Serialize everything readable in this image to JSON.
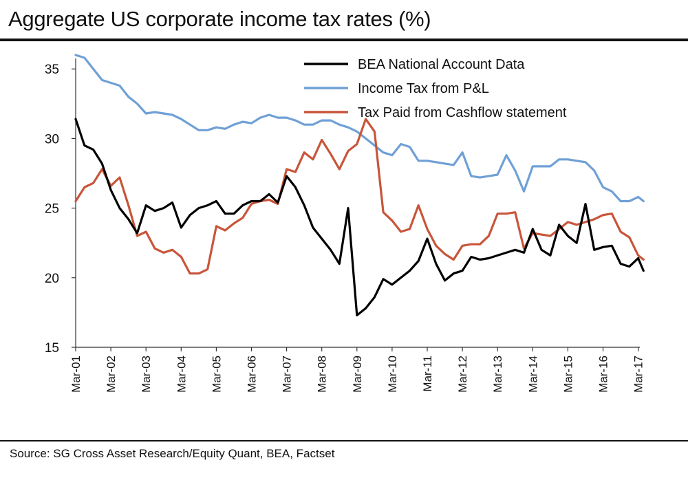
{
  "title": "Aggregate US corporate income tax rates (%)",
  "source": "Source: SG Cross Asset Research/Equity Quant, BEA, Factset",
  "chart_data": {
    "type": "line",
    "ylim": [
      15,
      36
    ],
    "yticks": [
      15,
      20,
      25,
      30,
      35
    ],
    "x_ticks": [
      "Mar-01",
      "Mar-02",
      "Mar-03",
      "Mar-04",
      "Mar-05",
      "Mar-06",
      "Mar-07",
      "Mar-08",
      "Mar-09",
      "Mar-10",
      "Mar-11",
      "Mar-12",
      "Mar-13",
      "Mar-14",
      "Mar-15",
      "Mar-16",
      "Mar-17"
    ],
    "legend_position": "top-right",
    "grid": false,
    "series": [
      {
        "name": "BEA National Account Data",
        "color": "#000000",
        "x": [
          2001.0,
          2001.25,
          2001.5,
          2001.75,
          2002.0,
          2002.25,
          2002.5,
          2002.75,
          2003.0,
          2003.25,
          2003.5,
          2003.75,
          2004.0,
          2004.25,
          2004.5,
          2004.75,
          2005.0,
          2005.25,
          2005.5,
          2005.75,
          2006.0,
          2006.25,
          2006.5,
          2006.75,
          2007.0,
          2007.25,
          2007.5,
          2007.75,
          2008.0,
          2008.25,
          2008.5,
          2008.75,
          2009.0,
          2009.25,
          2009.5,
          2009.75,
          2010.0,
          2010.25,
          2010.5,
          2010.75,
          2011.0,
          2011.25,
          2011.5,
          2011.75,
          2012.0,
          2012.25,
          2012.5,
          2012.75,
          2013.0,
          2013.25,
          2013.5,
          2013.75,
          2014.0,
          2014.25,
          2014.5,
          2014.75,
          2015.0,
          2015.25,
          2015.5,
          2015.75,
          2016.0,
          2016.25,
          2016.5,
          2016.75,
          2017.0,
          2017.15
        ],
        "values": [
          31.4,
          29.5,
          29.2,
          28.2,
          26.3,
          25.0,
          24.2,
          23.2,
          25.2,
          24.8,
          25.0,
          25.4,
          23.6,
          24.5,
          25.0,
          25.2,
          25.5,
          24.6,
          24.6,
          25.2,
          25.5,
          25.5,
          26.0,
          25.4,
          27.3,
          26.5,
          25.2,
          23.6,
          22.8,
          22.0,
          21.0,
          25.0,
          17.3,
          17.8,
          18.6,
          19.9,
          19.5,
          20.0,
          20.5,
          21.2,
          22.8,
          21.0,
          19.8,
          20.3,
          20.5,
          21.5,
          21.3,
          21.4,
          21.6,
          21.8,
          22.0,
          21.8,
          23.5,
          22.0,
          21.6,
          23.8,
          23.0,
          22.5,
          25.3,
          22.0,
          22.2,
          22.3,
          21.0,
          20.8,
          21.4,
          20.5
        ]
      },
      {
        "name": "Income Tax from P&L",
        "color": "#6fa0d6",
        "x": [
          2001.0,
          2001.25,
          2001.5,
          2001.75,
          2002.0,
          2002.25,
          2002.5,
          2002.75,
          2003.0,
          2003.25,
          2003.5,
          2003.75,
          2004.0,
          2004.25,
          2004.5,
          2004.75,
          2005.0,
          2005.25,
          2005.5,
          2005.75,
          2006.0,
          2006.25,
          2006.5,
          2006.75,
          2007.0,
          2007.25,
          2007.5,
          2007.75,
          2008.0,
          2008.25,
          2008.5,
          2008.75,
          2009.0,
          2009.25,
          2009.5,
          2009.75,
          2010.0,
          2010.25,
          2010.5,
          2010.75,
          2011.0,
          2011.25,
          2011.5,
          2011.75,
          2012.0,
          2012.25,
          2012.5,
          2012.75,
          2013.0,
          2013.25,
          2013.5,
          2013.75,
          2014.0,
          2014.25,
          2014.5,
          2014.75,
          2015.0,
          2015.25,
          2015.5,
          2015.75,
          2016.0,
          2016.25,
          2016.5,
          2016.75,
          2017.0,
          2017.15
        ],
        "values": [
          36.0,
          35.8,
          35.0,
          34.2,
          34.0,
          33.8,
          33.0,
          32.5,
          31.8,
          31.9,
          31.8,
          31.7,
          31.4,
          31.0,
          30.6,
          30.6,
          30.8,
          30.7,
          31.0,
          31.2,
          31.1,
          31.5,
          31.7,
          31.5,
          31.5,
          31.3,
          31.0,
          31.0,
          31.3,
          31.3,
          31.0,
          30.8,
          30.5,
          30.0,
          29.5,
          29.0,
          28.8,
          29.6,
          29.4,
          28.4,
          28.4,
          28.3,
          28.2,
          28.1,
          29.0,
          27.3,
          27.2,
          27.3,
          27.4,
          28.8,
          27.7,
          26.2,
          28.0,
          28.0,
          28.0,
          28.5,
          28.5,
          28.4,
          28.3,
          27.7,
          26.5,
          26.2,
          25.5,
          25.5,
          25.8,
          25.5
        ]
      },
      {
        "name": "Tax Paid from Cashflow statement",
        "color": "#c8553a",
        "x": [
          2001.0,
          2001.25,
          2001.5,
          2001.75,
          2002.0,
          2002.25,
          2002.5,
          2002.75,
          2003.0,
          2003.25,
          2003.5,
          2003.75,
          2004.0,
          2004.25,
          2004.5,
          2004.75,
          2005.0,
          2005.25,
          2005.5,
          2005.75,
          2006.0,
          2006.25,
          2006.5,
          2006.75,
          2007.0,
          2007.25,
          2007.5,
          2007.75,
          2008.0,
          2008.25,
          2008.5,
          2008.75,
          2009.0,
          2009.25,
          2009.5,
          2009.75,
          2010.0,
          2010.25,
          2010.5,
          2010.75,
          2011.0,
          2011.25,
          2011.5,
          2011.75,
          2012.0,
          2012.25,
          2012.5,
          2012.75,
          2013.0,
          2013.25,
          2013.5,
          2013.75,
          2014.0,
          2014.25,
          2014.5,
          2014.75,
          2015.0,
          2015.25,
          2015.5,
          2015.75,
          2016.0,
          2016.25,
          2016.5,
          2016.75,
          2017.0,
          2017.15
        ],
        "values": [
          25.5,
          26.5,
          26.8,
          27.8,
          26.6,
          27.2,
          25.2,
          23.0,
          23.3,
          22.1,
          21.8,
          22.0,
          21.5,
          20.3,
          20.3,
          20.6,
          23.7,
          23.4,
          23.9,
          24.3,
          25.3,
          25.5,
          25.6,
          25.3,
          27.8,
          27.6,
          29.0,
          28.5,
          29.9,
          28.9,
          27.8,
          29.1,
          29.6,
          31.4,
          30.5,
          24.7,
          24.1,
          23.3,
          23.5,
          25.2,
          23.5,
          22.3,
          21.7,
          21.3,
          22.3,
          22.4,
          22.4,
          23.0,
          24.6,
          24.6,
          24.7,
          22.1,
          23.2,
          23.1,
          23.0,
          23.5,
          24.0,
          23.8,
          24.0,
          24.2,
          24.5,
          24.6,
          23.3,
          22.9,
          21.6,
          21.3
        ]
      }
    ]
  }
}
